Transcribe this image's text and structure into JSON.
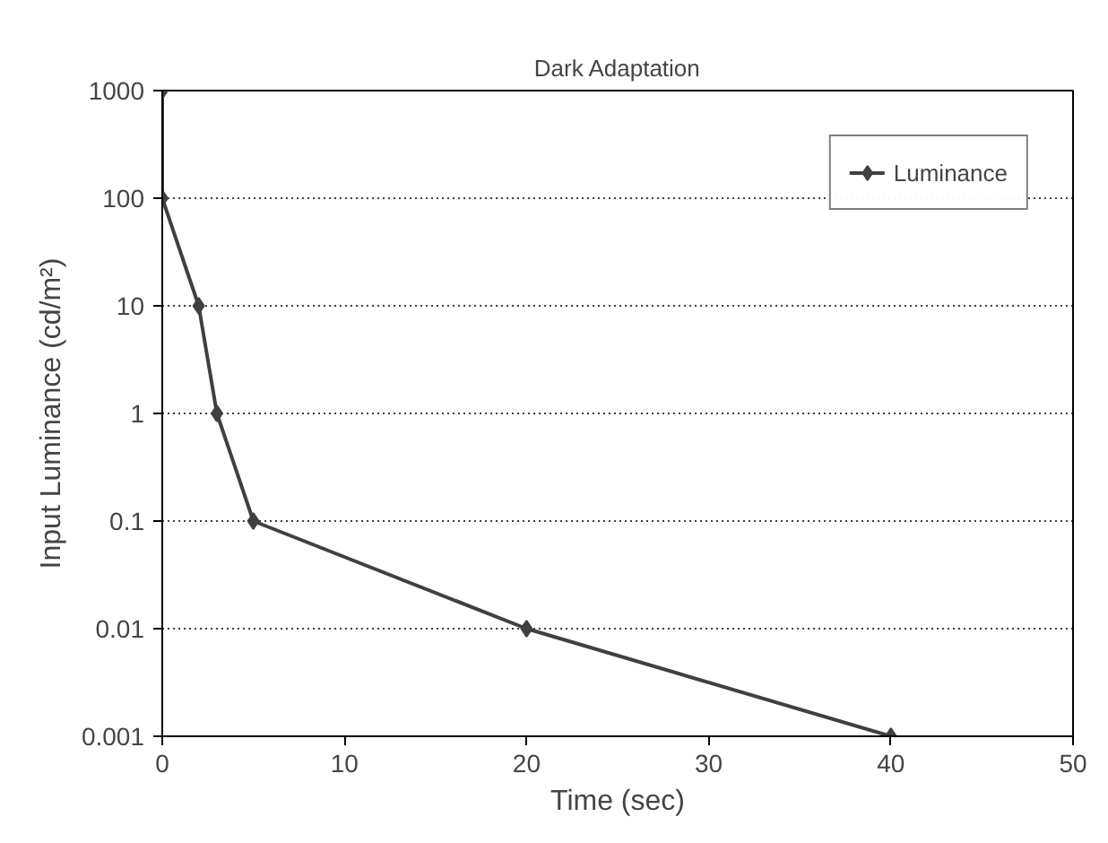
{
  "chart_data": {
    "type": "line",
    "title": "Dark Adaptation",
    "xlabel": "Time (sec)",
    "ylabel": "Input Luminance (cd/m²)",
    "x": [
      0,
      0,
      2,
      3,
      5,
      20,
      40
    ],
    "series": [
      {
        "name": "Luminance",
        "color": "#404040",
        "values": [
          1000,
          100,
          10,
          1,
          0.1,
          0.01,
          0.001
        ]
      }
    ],
    "xlim": [
      0,
      50
    ],
    "xticks": [
      0,
      10,
      20,
      30,
      40,
      50
    ],
    "ylim": [
      0.001,
      1000
    ],
    "yticks": [
      0.001,
      0.01,
      0.1,
      1,
      10,
      100,
      1000
    ],
    "log": "y",
    "grid": "y",
    "legend": "top right",
    "marker": "diamond",
    "line_style": "solid"
  }
}
